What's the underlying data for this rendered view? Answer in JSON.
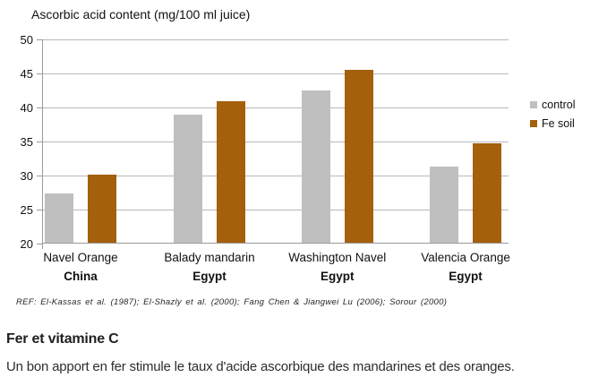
{
  "title": "Ascorbic acid content (mg/100 ml juice)",
  "chart_data": {
    "type": "bar",
    "title": "Ascorbic acid content (mg/100 ml juice)",
    "categories": [
      {
        "name": "Navel Orange",
        "country": "China"
      },
      {
        "name": "Balady mandarin",
        "country": "Egypt"
      },
      {
        "name": "Washington Navel",
        "country": "Egypt"
      },
      {
        "name": "Valencia Orange",
        "country": "Egypt"
      }
    ],
    "series": [
      {
        "name": "control",
        "color": "#bfbfbf",
        "values": [
          27.3,
          38.8,
          42.4,
          31.2
        ]
      },
      {
        "name": "Fe soil",
        "color": "#a4600c",
        "values": [
          30.0,
          40.8,
          45.4,
          34.6
        ]
      }
    ],
    "ylabel": "",
    "xlabel": "",
    "ylim": [
      20,
      50
    ],
    "yticks": [
      50,
      45,
      40,
      35,
      30,
      25,
      20
    ],
    "grid": true,
    "legend_position": "right"
  },
  "reference": "REF: El-Kassas et al. (1987); El-Shazly et al. (2000); Fang Chen & Jiangwei Lu (2006); Sorour (2000)",
  "caption": {
    "heading": "Fer et vitamine C",
    "body": "Un bon apport en fer stimule le taux d'acide ascorbique des mandarines et des oranges."
  }
}
